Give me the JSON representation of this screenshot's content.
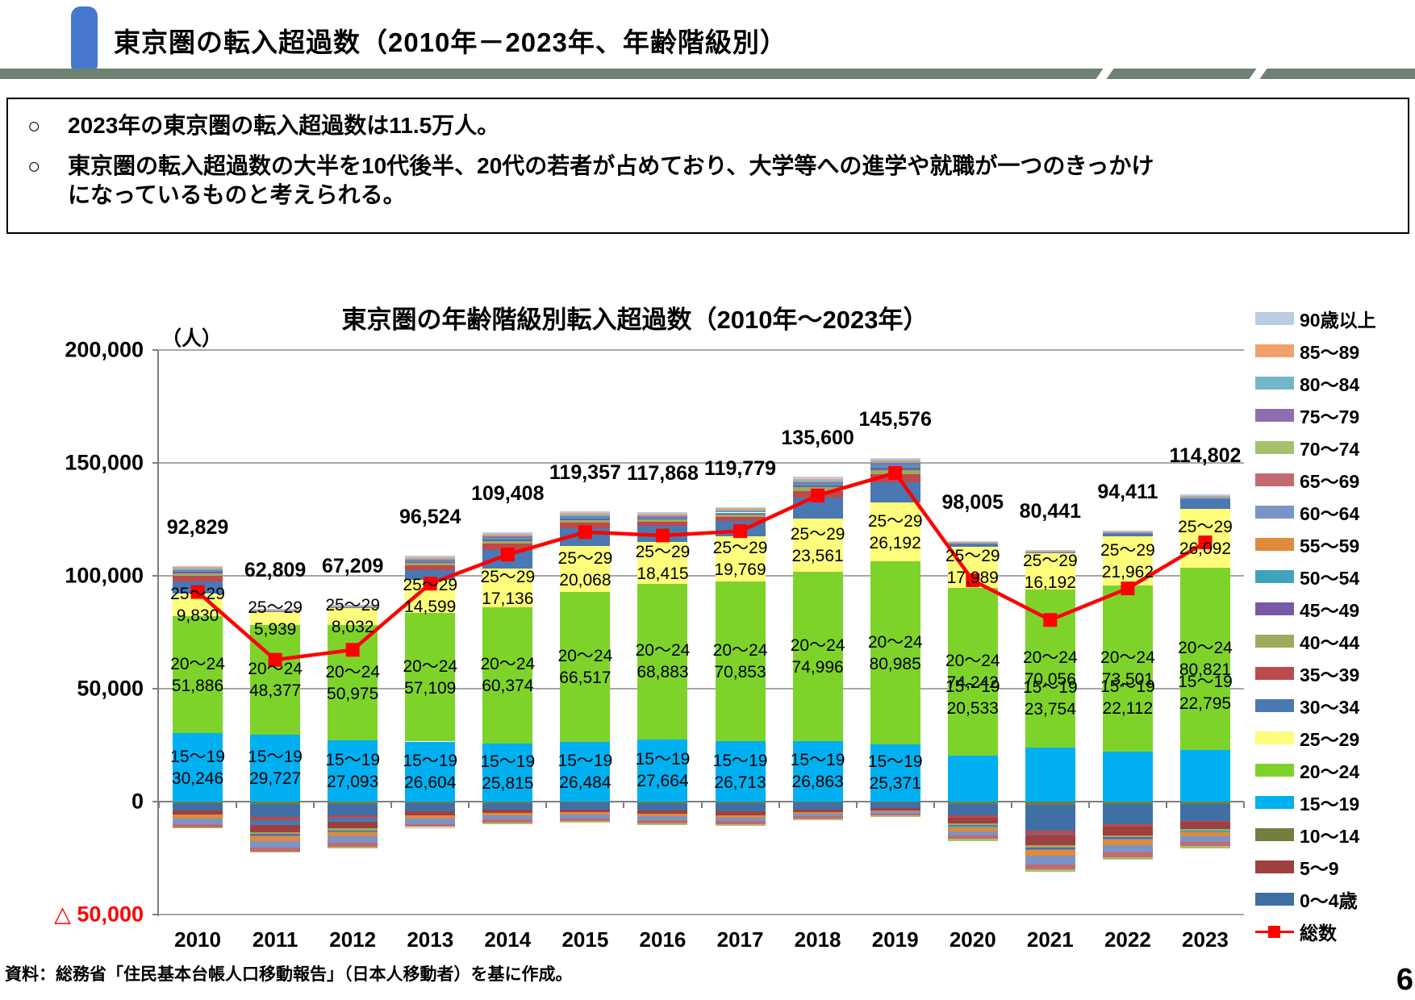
{
  "header": {
    "title": "東京圏の転入超過数（2010年－2023年、年齢階級別）"
  },
  "callout": {
    "bullet_symbol": "○",
    "bullets": [
      {
        "lines": [
          "2023年の東京圏の転入超過数は11.5万人。"
        ]
      },
      {
        "lines": [
          "東京圏の転入超過数の大半を10代後半、20代の若者が占めており、大学等への進学や就職が一つのきっかけ",
          "になっているものと考えられる。"
        ]
      }
    ]
  },
  "chart": {
    "title": "東京圏の年齢階級別転入超過数（2010年～2023年）",
    "unit_label": "（人）",
    "y_axis": {
      "tick_labels": [
        "200,000",
        "150,000",
        "100,000",
        "50,000",
        "0"
      ],
      "negative_tick_label": "△ 50,000",
      "max": 200000,
      "min": -50000,
      "step": 50000
    },
    "source": "資料：総務省「住民基本台帳人口移動報告」（日本人移動者）を基に作成。",
    "page_number": "6"
  },
  "chart_data": {
    "type": "bar",
    "subtype": "stacked-bars-with-total-line",
    "title": "東京圏の年齢階級別転入超過数（2010年～2023年）",
    "ylabel": "（人）",
    "ylim": [
      -50000,
      200000
    ],
    "grid": true,
    "legend_position": "right",
    "categories": [
      2010,
      2011,
      2012,
      2013,
      2014,
      2015,
      2016,
      2017,
      2018,
      2019,
      2020,
      2021,
      2022,
      2023
    ],
    "series": [
      {
        "name": "0～4歳",
        "color": "#3f6fa5",
        "estimated": true,
        "values": [
          -3300,
          -5800,
          -5000,
          -3800,
          -3100,
          -3000,
          -3300,
          -3600,
          -2900,
          -2500,
          -5200,
          -11500,
          -8700,
          -7400
        ]
      },
      {
        "name": "5～9",
        "color": "#9e4040",
        "estimated": true,
        "values": [
          -1600,
          -3200,
          -3000,
          -1700,
          -1300,
          -1300,
          -1500,
          -1700,
          -1200,
          -1000,
          -2700,
          -4200,
          -4000,
          -3300
        ]
      },
      {
        "name": "10～14",
        "color": "#71803f",
        "estimated": true,
        "values": [
          -700,
          -1000,
          -900,
          -650,
          -550,
          -500,
          -600,
          -700,
          -500,
          -400,
          -950,
          -1300,
          -1200,
          -1000
        ]
      },
      {
        "name": "15～19",
        "color": "#00b0f0",
        "labeled": true,
        "values": [
          30246,
          29727,
          27093,
          26604,
          25815,
          26484,
          27664,
          26713,
          26863,
          25371,
          20533,
          23754,
          22112,
          22795
        ]
      },
      {
        "name": "20～24",
        "color": "#7ed32b",
        "labeled": true,
        "values": [
          51886,
          48377,
          50975,
          57109,
          60374,
          66517,
          68883,
          70853,
          74996,
          80985,
          74242,
          70056,
          73501,
          80821
        ]
      },
      {
        "name": "25～29",
        "color": "#fdfd7b",
        "labeled": true,
        "values": [
          9830,
          5939,
          8032,
          14599,
          17136,
          20068,
          18415,
          19769,
          23561,
          26192,
          17989,
          16192,
          21962,
          26092
        ]
      },
      {
        "name": "30～34",
        "color": "#4a78b2",
        "estimated": true,
        "values": [
          5500,
          -2000,
          -1600,
          4200,
          8200,
          8100,
          7100,
          7000,
          9300,
          9000,
          1100,
          -500,
          900,
          4300
        ]
      },
      {
        "name": "35～39",
        "color": "#bc4a4d",
        "estimated": true,
        "values": [
          2500,
          -1500,
          -1400,
          2200,
          2600,
          2400,
          1900,
          1900,
          2900,
          3400,
          -900,
          -1800,
          -1000,
          -500
        ]
      },
      {
        "name": "40～44",
        "color": "#9cab5d",
        "estimated": true,
        "values": [
          1200,
          -900,
          -800,
          1000,
          1300,
          1200,
          900,
          900,
          1500,
          1800,
          -700,
          -1000,
          -900,
          -500
        ]
      },
      {
        "name": "45～49",
        "color": "#7859a5",
        "estimated": true,
        "values": [
          600,
          -500,
          -400,
          500,
          700,
          700,
          500,
          500,
          900,
          1200,
          -400,
          -600,
          -500,
          -300
        ]
      },
      {
        "name": "50～54",
        "color": "#3fa4ba",
        "estimated": true,
        "values": [
          400,
          -400,
          -350,
          300,
          500,
          500,
          400,
          400,
          800,
          1100,
          -500,
          -700,
          -600,
          -400
        ]
      },
      {
        "name": "55～59",
        "color": "#e08a3b",
        "estimated": true,
        "values": [
          -1900,
          -2200,
          -2000,
          -1300,
          -1000,
          -900,
          -1000,
          -1000,
          -700,
          -500,
          -1700,
          -2400,
          -2300,
          -1800
        ]
      },
      {
        "name": "60～64",
        "color": "#7b93c7",
        "estimated": true,
        "values": [
          -2500,
          -2900,
          -2900,
          -2400,
          -2000,
          -1700,
          -1700,
          -1600,
          -1200,
          -1000,
          -2100,
          -3700,
          -3200,
          -2700
        ]
      },
      {
        "name": "65～69",
        "color": "#c4696d",
        "estimated": true,
        "values": [
          -1300,
          -1700,
          -1600,
          -1400,
          -1300,
          -1300,
          -1400,
          -1300,
          -1000,
          -800,
          -1400,
          -2200,
          -2200,
          -1900
        ]
      },
      {
        "name": "70～74",
        "color": "#a5c16e",
        "estimated": true,
        "values": [
          -300,
          -500,
          -600,
          -600,
          -600,
          -600,
          -700,
          -700,
          -600,
          -500,
          -1000,
          -1100,
          -1200,
          -1000
        ]
      },
      {
        "name": "75～79",
        "color": "#8e6fae",
        "estimated": true,
        "values": [
          500,
          200,
          150,
          500,
          700,
          600,
          500,
          500,
          700,
          800,
          250,
          250,
          300,
          400
        ]
      },
      {
        "name": "80～84",
        "color": "#73b6c9",
        "estimated": true,
        "values": [
          550,
          300,
          300,
          550,
          650,
          650,
          600,
          600,
          700,
          750,
          400,
          350,
          400,
          450
        ]
      },
      {
        "name": "85～89",
        "color": "#f2a16d",
        "estimated": true,
        "values": [
          700,
          400,
          400,
          650,
          750,
          750,
          700,
          700,
          800,
          850,
          500,
          450,
          500,
          550
        ]
      },
      {
        "name": "90歳以上",
        "color": "#b9cde4",
        "estimated": true,
        "values": [
          550,
          300,
          300,
          550,
          650,
          650,
          600,
          650,
          750,
          800,
          450,
          400,
          450,
          500
        ]
      }
    ],
    "line_series": {
      "name": "総数",
      "color": "#ff0000",
      "values": [
        92829,
        62809,
        67209,
        96524,
        109408,
        119357,
        117868,
        119779,
        135600,
        145576,
        98005,
        80441,
        94411,
        114802
      ]
    },
    "total_labels": [
      "92,829",
      "62,809",
      "67,209",
      "96,524",
      "109,408",
      "119,357",
      "117,868",
      "119,779",
      "135,600",
      "145,576",
      "98,005",
      "80,441",
      "94,411",
      "114,802"
    ]
  }
}
